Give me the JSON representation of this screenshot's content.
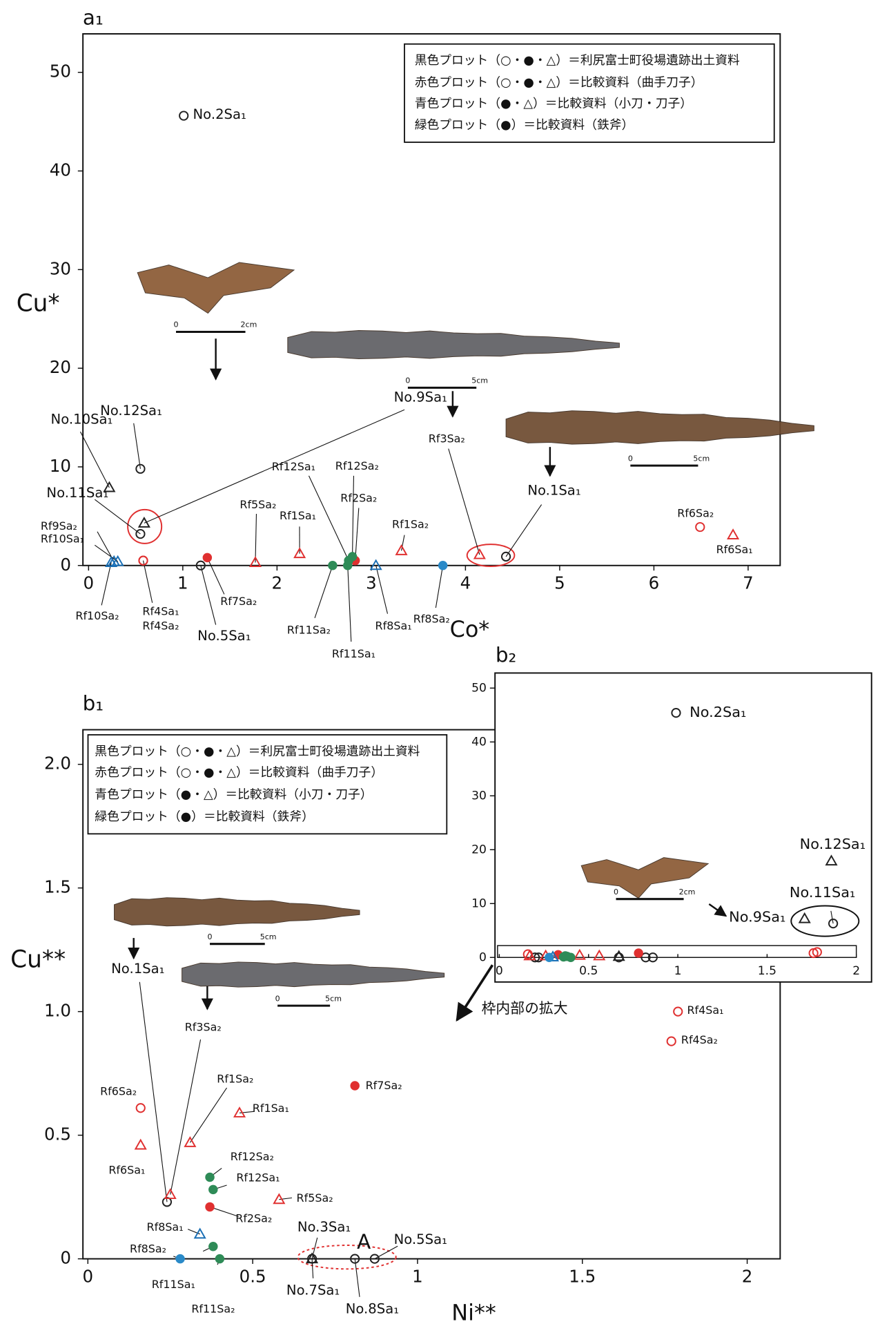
{
  "chart_data": [
    {
      "type": "scatter",
      "panel": "a₁",
      "x_label": "Co*",
      "y_label": "Cu*",
      "xlim": [
        -0.06,
        7.34
      ],
      "ylim": [
        0,
        53.9
      ],
      "xticks": [
        0,
        1,
        2,
        3,
        4,
        5,
        6,
        7
      ],
      "yticks": [
        0,
        10,
        20,
        30,
        40,
        50
      ],
      "legend": [
        "黒色プロット（○・●・△）＝利尻富士町役場遺跡出土資料",
        "赤色プロット（○・●・△）＝比較資料（曲手刀子）",
        "青色プロット（●・△）＝比較資料（小刀・刀子）",
        "緑色プロット（●）＝比較資料（鉄斧）"
      ],
      "photo_scales": [
        {
          "zero": "0",
          "length": "2cm"
        },
        {
          "zero": "0",
          "length": "5cm"
        },
        {
          "zero": "0",
          "length": "5cm"
        }
      ],
      "series": [
        {
          "color": "#222222",
          "marker": "circle-open",
          "x": [
            1.01,
            0.55,
            0.55,
            1.19,
            4.43
          ],
          "values": [
            45.6,
            9.8,
            3.2,
            0,
            0.9
          ],
          "labels": [
            "No.2Sa₁",
            "No.12Sa₁",
            "No.11Sa₁",
            "No.5Sa₁",
            "No.1Sa₁"
          ]
        },
        {
          "color": "#222222",
          "marker": "triangle",
          "x": [
            0.22,
            0.59
          ],
          "values": [
            7.9,
            4.3
          ],
          "labels": [
            "No.10Sa₁",
            "No.9Sa₁"
          ]
        },
        {
          "color": "#e03030",
          "marker": "circle-open",
          "x": [
            0.58,
            0.58,
            6.49
          ],
          "values": [
            0.5,
            0.5,
            3.9
          ],
          "labels": [
            "Rf4Sa₁",
            "Rf4Sa₂",
            "Rf6Sa₂"
          ]
        },
        {
          "color": "#e03030",
          "marker": "circle-filled",
          "x": [
            1.26,
            2.83
          ],
          "values": [
            0.8,
            0.5
          ],
          "labels": [
            "Rf7Sa₂",
            "Rf2Sa₂"
          ]
        },
        {
          "color": "#e03030",
          "marker": "triangle",
          "x": [
            1.77,
            2.24,
            3.32,
            4.15,
            6.84
          ],
          "values": [
            0.3,
            1.2,
            1.5,
            1.1,
            3.1
          ],
          "labels": [
            "Rf5Sa₂",
            "Rf1Sa₁",
            "Rf1Sa₂",
            "Rf3Sa₂",
            "Rf6Sa₁"
          ]
        },
        {
          "color": "#1a6fb5",
          "marker": "triangle",
          "x": [
            0.27,
            0.31,
            0.24,
            3.05
          ],
          "values": [
            0.4,
            0.4,
            0.3,
            0
          ],
          "labels": [
            "Rf9Sa₂",
            "Rf10Sa₁",
            "Rf10Sa₂",
            "Rf8Sa₁"
          ]
        },
        {
          "color": "#2a8ac8",
          "marker": "circle-filled",
          "x": [
            3.76
          ],
          "values": [
            0
          ],
          "labels": [
            "Rf8Sa₂"
          ]
        },
        {
          "color": "#2e8b57",
          "marker": "circle-filled",
          "x": [
            2.59,
            2.75,
            2.76,
            2.8
          ],
          "values": [
            0,
            0,
            0.5,
            0.9
          ],
          "labels": [
            "Rf11Sa₂",
            "Rf11Sa₁",
            "Rf12Sa₁",
            "Rf12Sa₂"
          ]
        }
      ]
    },
    {
      "type": "scatter",
      "panel": "b₁",
      "x_label": "Ni**",
      "y_label": "Cu**",
      "xlim": [
        -0.015,
        2.1
      ],
      "ylim": [
        0,
        2.14
      ],
      "xticks": [
        0,
        0.5,
        1,
        1.5,
        2
      ],
      "yticks": [
        0,
        {
          "value": 0.5,
          "label": "0.5"
        },
        {
          "value": 1,
          "label": "1.0"
        },
        {
          "value": 1.5,
          "label": "1.5"
        },
        {
          "value": 2,
          "label": "2.0"
        }
      ],
      "legend": [
        "黒色プロット（○・●・△）＝利尻富士町役場遺跡出土資料",
        "赤色プロット（○・●・△）＝比較資料（曲手刀子）",
        "青色プロット（●・△）＝比較資料（小刀・刀子）",
        "緑色プロット（●）＝比較資料（鉄斧）"
      ],
      "photo_scales": [
        {
          "zero": "0",
          "length": "5cm"
        },
        {
          "zero": "0",
          "length": "5cm"
        }
      ],
      "annotations": [
        "A",
        "枠内部の拡大"
      ],
      "series": [
        {
          "color": "#222222",
          "marker": "circle-open",
          "x": [
            0.24,
            0.68,
            0.81,
            0.87
          ],
          "values": [
            0.23,
            0,
            0,
            0
          ],
          "labels": [
            "No.1Sa₁",
            "No.3Sa₁",
            "No.8Sa₁",
            "No.5Sa₁"
          ]
        },
        {
          "color": "#222222",
          "marker": "triangle",
          "x": [
            0.68
          ],
          "values": [
            0
          ],
          "labels": [
            "No.7Sa₁"
          ]
        },
        {
          "color": "#e03030",
          "marker": "circle-open",
          "x": [
            0.16,
            1.79,
            1.77
          ],
          "values": [
            0.61,
            1.0,
            0.88
          ],
          "labels": [
            "Rf6Sa₂",
            "Rf4Sa₁",
            "Rf4Sa₂"
          ]
        },
        {
          "color": "#e03030",
          "marker": "circle-filled",
          "x": [
            0.81,
            0.37
          ],
          "values": [
            0.7,
            0.21
          ],
          "labels": [
            "Rf7Sa₂",
            "Rf2Sa₂"
          ]
        },
        {
          "color": "#e03030",
          "marker": "triangle",
          "x": [
            0.16,
            0.25,
            0.31,
            0.46,
            0.58
          ],
          "values": [
            0.46,
            0.26,
            0.47,
            0.59,
            0.24
          ],
          "labels": [
            "Rf6Sa₁",
            "Rf3Sa₂",
            "Rf1Sa₂",
            "Rf1Sa₁",
            "Rf5Sa₂"
          ]
        },
        {
          "color": "#1a6fb5",
          "marker": "triangle",
          "x": [
            0.34
          ],
          "values": [
            0.1
          ],
          "labels": [
            "Rf8Sa₁"
          ]
        },
        {
          "color": "#2a8ac8",
          "marker": "circle-filled",
          "x": [
            0.28
          ],
          "values": [
            0
          ],
          "labels": [
            "Rf8Sa₂"
          ]
        },
        {
          "color": "#2e8b57",
          "marker": "circle-filled",
          "x": [
            0.37,
            0.38,
            0.38,
            0.4
          ],
          "values": [
            0.33,
            0.28,
            0.05,
            0
          ],
          "labels": [
            "Rf12Sa₂",
            "Rf12Sa₁",
            "Rf11Sa₁",
            "Rf11Sa₂"
          ]
        }
      ]
    },
    {
      "type": "scatter",
      "panel": "b₂",
      "xlim": [
        -0.024,
        2.085
      ],
      "ylim": [
        0,
        52.8
      ],
      "xticks": [
        0,
        0.5,
        1,
        1.5,
        2
      ],
      "yticks": [
        0,
        10,
        20,
        30,
        40,
        50
      ],
      "photo_scales": [
        {
          "zero": "0",
          "length": "2cm"
        }
      ],
      "series": [
        {
          "color": "#222222",
          "marker": "circle-open",
          "x": [
            0.99,
            1.87
          ],
          "values": [
            45.4,
            6.3
          ],
          "labels": [
            "No.2Sa₁",
            "No.11Sa₁"
          ]
        },
        {
          "color": "#222222",
          "marker": "triangle",
          "x": [
            1.86,
            1.71
          ],
          "values": [
            17.9,
            7.2
          ],
          "labels": [
            "No.12Sa₁",
            "No.9Sa₁"
          ]
        },
        {
          "color": "#222222",
          "marker": "circle-open",
          "x": [
            0.2,
            0.22,
            0.67,
            0.82,
            0.86
          ],
          "values": [
            0,
            0,
            0,
            0,
            0
          ]
        },
        {
          "color": "#222222",
          "marker": "triangle",
          "x": [
            0.67
          ],
          "values": [
            0.2
          ]
        },
        {
          "color": "#e03030",
          "marker": "circle-open",
          "x": [
            0.16,
            1.76,
            1.78
          ],
          "values": [
            0.6,
            0.8,
            1.0
          ]
        },
        {
          "color": "#e03030",
          "marker": "circle-filled",
          "x": [
            0.33,
            0.78
          ],
          "values": [
            0.5,
            0.8
          ]
        },
        {
          "color": "#e03030",
          "marker": "triangle",
          "x": [
            0.17,
            0.26,
            0.45,
            0.56
          ],
          "values": [
            0.3,
            0.3,
            0.4,
            0.3
          ]
        },
        {
          "color": "#1a6fb5",
          "marker": "triangle",
          "x": [
            0.3
          ],
          "values": [
            0.1
          ]
        },
        {
          "color": "#2a8ac8",
          "marker": "circle-filled",
          "x": [
            0.28
          ],
          "values": [
            0
          ]
        },
        {
          "color": "#2e8b57",
          "marker": "circle-filled",
          "x": [
            0.37,
            0.38,
            0.36,
            0.4
          ],
          "values": [
            0.3,
            0.2,
            0.1,
            0
          ]
        }
      ]
    }
  ]
}
